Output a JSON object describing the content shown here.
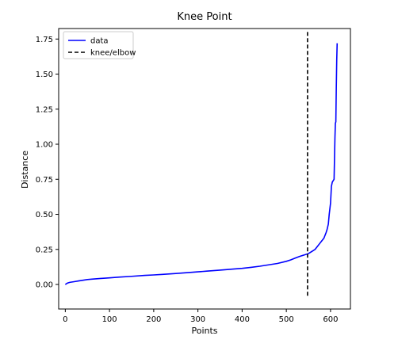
{
  "chart_data": {
    "type": "line",
    "title": "Knee Point",
    "xlabel": "Points",
    "ylabel": "Distance",
    "xlim": [
      -15,
      645
    ],
    "ylim": [
      -0.175,
      1.825
    ],
    "xticks": [
      0,
      100,
      200,
      300,
      400,
      500,
      600
    ],
    "yticks": [
      0.0,
      0.25,
      0.5,
      0.75,
      1.0,
      1.25,
      1.5,
      1.75
    ],
    "xtick_labels": [
      "0",
      "100",
      "200",
      "300",
      "400",
      "500",
      "600"
    ],
    "ytick_labels": [
      "0.00",
      "0.25",
      "0.50",
      "0.75",
      "1.00",
      "1.25",
      "1.50",
      "1.75"
    ],
    "grid": false,
    "legend_position": "top-left",
    "series": [
      {
        "name": "data",
        "color": "#0000ff",
        "style": "solid",
        "x": [
          0,
          5,
          10,
          20,
          30,
          40,
          50,
          60,
          80,
          100,
          120,
          150,
          180,
          200,
          220,
          250,
          280,
          300,
          320,
          350,
          380,
          400,
          420,
          440,
          460,
          480,
          500,
          510,
          520,
          530,
          540,
          550,
          555,
          560,
          565,
          570,
          575,
          580,
          585,
          590,
          592,
          595,
          597,
          600,
          602,
          604,
          606,
          608,
          610,
          611,
          612,
          613,
          614,
          615
        ],
        "y": [
          0.0,
          0.01,
          0.015,
          0.02,
          0.025,
          0.03,
          0.035,
          0.038,
          0.043,
          0.047,
          0.052,
          0.058,
          0.065,
          0.068,
          0.072,
          0.078,
          0.085,
          0.09,
          0.095,
          0.102,
          0.11,
          0.115,
          0.122,
          0.13,
          0.14,
          0.15,
          0.165,
          0.175,
          0.188,
          0.2,
          0.21,
          0.22,
          0.23,
          0.24,
          0.25,
          0.27,
          0.29,
          0.31,
          0.33,
          0.37,
          0.39,
          0.43,
          0.5,
          0.58,
          0.7,
          0.73,
          0.74,
          0.75,
          1.05,
          1.15,
          1.16,
          1.4,
          1.6,
          1.72
        ]
      },
      {
        "name": "knee/elbow",
        "color": "#000000",
        "style": "dashed",
        "x": [
          548,
          548
        ],
        "y": [
          -0.08,
          1.8
        ]
      }
    ]
  }
}
